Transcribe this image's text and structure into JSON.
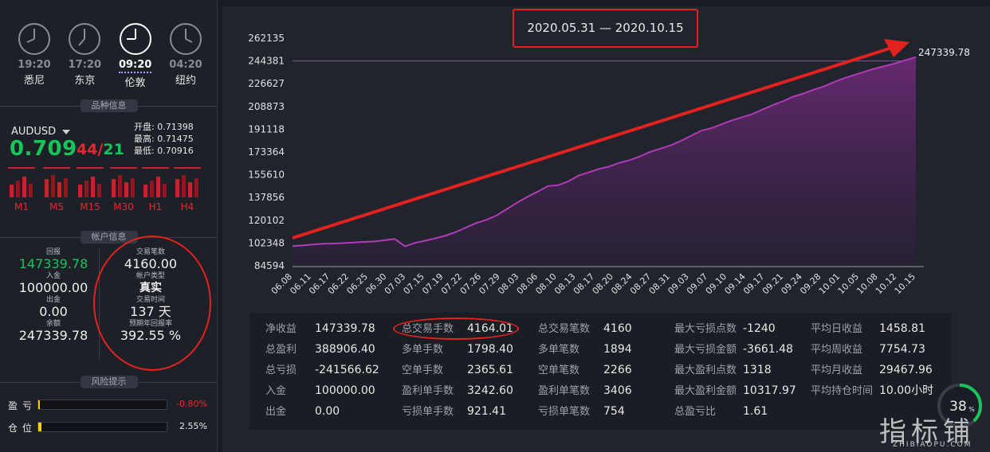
{
  "clocks": [
    {
      "time": "19:20",
      "city": "悉尼",
      "active": false
    },
    {
      "time": "17:20",
      "city": "东京",
      "active": false
    },
    {
      "time": "09:20",
      "city": "伦敦",
      "active": true
    },
    {
      "time": "04:20",
      "city": "纽约",
      "active": false
    }
  ],
  "sections": {
    "instrument": "品种信息",
    "account": "帐户信息",
    "risk": "风险提示"
  },
  "instrument": {
    "symbol": "AUDUSD",
    "price": "0.709",
    "spread_a": "44",
    "spread_sep": "/",
    "spread_b": "21",
    "open_label": "开盘:",
    "open": "0.71398",
    "high_label": "最高:",
    "high": "0.71475",
    "low_label": "最低:",
    "low": "0.70916",
    "timeframes": [
      "M1",
      "M5",
      "M15",
      "M30",
      "H1",
      "H4"
    ]
  },
  "account": {
    "return_label": "回报",
    "return_value": "147339.78",
    "deposit_label": "入金",
    "deposit_value": "100000.00",
    "withdraw_label": "出金",
    "withdraw_value": "0.00",
    "balance_label": "余额",
    "balance_value": "247339.78",
    "trades_label": "交易笔数",
    "trades_value": "4160.00",
    "type_label": "帐户类型",
    "type_value": "真实",
    "duration_label": "交易时间",
    "duration_value": "137 天",
    "annual_label": "预期年回报率",
    "annual_value": "392.55 %"
  },
  "risk": {
    "loss_label": "盈亏",
    "loss_value": "-0.80%",
    "loss_fill": 0.0,
    "pos_label": "仓位",
    "pos_value": "2.55%",
    "pos_fill": 0.026
  },
  "chart": {
    "date_range": "2020.05.31 — 2020.10.15",
    "last_label": "247339.78",
    "colors": {
      "line": "#b03ab8",
      "arrow": "#e3221f",
      "grid": "#3a3d48"
    }
  },
  "chart_data": {
    "type": "area",
    "title": "",
    "ylim": [
      84594,
      262135
    ],
    "y_ticks": [
      "262135",
      "244381",
      "226627",
      "208873",
      "191118",
      "173364",
      "155610",
      "137856",
      "120102",
      "102348",
      "84594"
    ],
    "x_ticks": [
      "06.08",
      "06.11",
      "06.17",
      "06.22",
      "06.25",
      "06.30",
      "07.03",
      "07.15",
      "07.19",
      "07.22",
      "07.26",
      "07.29",
      "08.03",
      "08.06",
      "08.10",
      "08.13",
      "08.17",
      "08.20",
      "08.24",
      "08.27",
      "08.31",
      "09.03",
      "09.07",
      "09.10",
      "09.14",
      "09.17",
      "09.21",
      "09.24",
      "09.28",
      "10.01",
      "10.05",
      "10.08",
      "10.12",
      "10.15"
    ],
    "reference_line": 244381,
    "series": [
      {
        "values": [
          100000,
          100500,
          101200,
          101800,
          102000,
          102300,
          102800,
          103200,
          103500,
          104500,
          105600,
          99800,
          102500,
          104200,
          106000,
          108200,
          111000,
          114500,
          118000,
          120500,
          124000,
          129000,
          134000,
          138500,
          142500,
          146800,
          147500,
          150500,
          155000,
          157500,
          160200,
          162000,
          165000,
          167000,
          170000,
          173500,
          176000,
          178500,
          182000,
          186000,
          190000,
          192000,
          195000,
          198000,
          200500,
          203000,
          206500,
          210000,
          213000,
          216500,
          219000,
          222000,
          224500,
          228000,
          231000,
          233500,
          236000,
          238500,
          240500,
          242500,
          245000,
          247339.78
        ]
      }
    ]
  },
  "stats": [
    [
      {
        "k": "净收益",
        "v": "147339.78"
      },
      {
        "k": "总盈利",
        "v": "388906.40"
      },
      {
        "k": "总亏损",
        "v": "-241566.62"
      },
      {
        "k": "入金",
        "v": "100000.00"
      },
      {
        "k": "出金",
        "v": "0.00"
      }
    ],
    [
      {
        "k": "总交易手数",
        "v": "4164.01"
      },
      {
        "k": "多单手数",
        "v": "1798.40"
      },
      {
        "k": "空单手数",
        "v": "2365.61"
      },
      {
        "k": "盈利单手数",
        "v": "3242.60"
      },
      {
        "k": "亏损单手数",
        "v": "921.41"
      }
    ],
    [
      {
        "k": "总交易笔数",
        "v": "4160"
      },
      {
        "k": "多单笔数",
        "v": "1894"
      },
      {
        "k": "空单笔数",
        "v": "2266"
      },
      {
        "k": "盈利单笔数",
        "v": "3406"
      },
      {
        "k": "亏损单笔数",
        "v": "754"
      }
    ],
    [
      {
        "k": "最大亏损点数",
        "v": "-1240"
      },
      {
        "k": "最大亏损金额",
        "v": "-3661.48"
      },
      {
        "k": "最大盈利点数",
        "v": "1318"
      },
      {
        "k": "最大盈利金额",
        "v": "10317.97"
      },
      {
        "k": "总盈亏比",
        "v": "1.61"
      }
    ],
    [
      {
        "k": "平均日收益",
        "v": "1458.81"
      },
      {
        "k": "平均周收益",
        "v": "7754.73"
      },
      {
        "k": "平均月收益",
        "v": "29467.96"
      },
      {
        "k": "平均持仓时间",
        "v": "10.00小时"
      }
    ]
  ],
  "gauge": {
    "value": "38",
    "unit": "%"
  },
  "watermark": {
    "text": "指标铺",
    "sub": "ZHIBIAOPU.COM"
  }
}
